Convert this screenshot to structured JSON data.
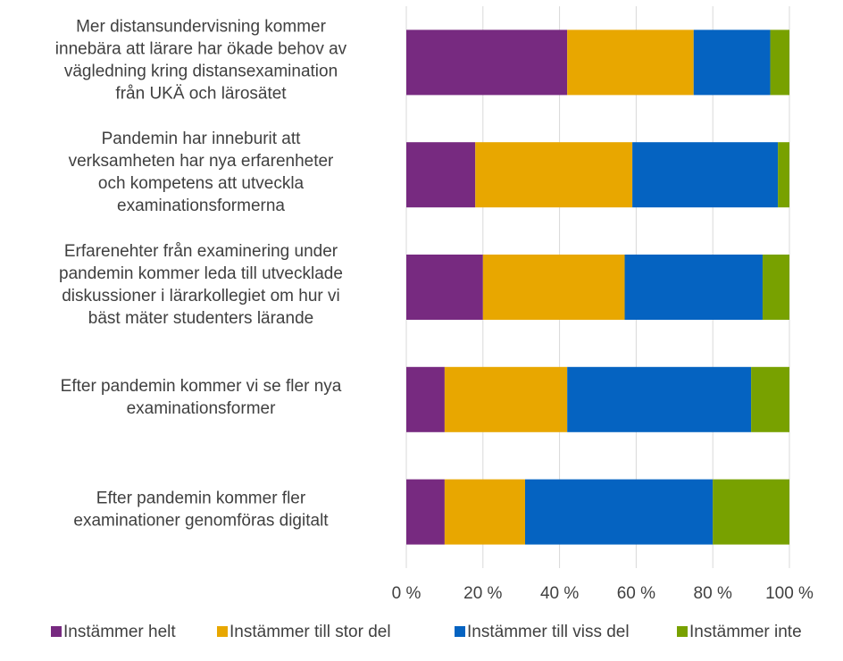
{
  "chart_data": {
    "type": "stacked-bar-horizontal",
    "categories": [
      [
        "Mer distansundervisning kommer",
        "innebära att lärare har ökade behov av",
        "vägledning kring distansexamination",
        "från UKÄ och lärosätet"
      ],
      [
        "Pandemin har inneburit att",
        "verksamheten har nya erfarenheter",
        "och kompetens att utveckla",
        "examinationsformerna"
      ],
      [
        "Erfarenehter från examinering under",
        "pandemin kommer leda till utvecklade",
        "diskussioner i lärarkollegiet om hur vi",
        "bäst mäter studenters lärande"
      ],
      [
        "Efter pandemin kommer vi se fler nya",
        "examinationsformer"
      ],
      [
        "Efter pandemin kommer fler",
        "examinationer genomföras digitalt"
      ]
    ],
    "series": [
      {
        "name": "Instämmer helt",
        "color": "#772a80",
        "values": [
          42,
          18,
          20,
          10,
          10
        ]
      },
      {
        "name": "Instämmer till stor del",
        "color": "#e8a700",
        "values": [
          33,
          41,
          37,
          32,
          21
        ]
      },
      {
        "name": "Instämmer till viss del",
        "color": "#0563c1",
        "values": [
          20,
          38,
          36,
          48,
          49
        ]
      },
      {
        "name": "Instämmer inte",
        "color": "#78a100",
        "values": [
          5,
          3,
          7,
          10,
          20
        ]
      }
    ],
    "xlim": [
      0,
      100
    ],
    "xticks": [
      {
        "value": 0,
        "label": "0 %"
      },
      {
        "value": 20,
        "label": "20 %"
      },
      {
        "value": 40,
        "label": "40 %"
      },
      {
        "value": 60,
        "label": "60 %"
      },
      {
        "value": 80,
        "label": "80 %"
      },
      {
        "value": 100,
        "label": "100 %"
      }
    ],
    "grid": true,
    "legend": "bottom"
  }
}
